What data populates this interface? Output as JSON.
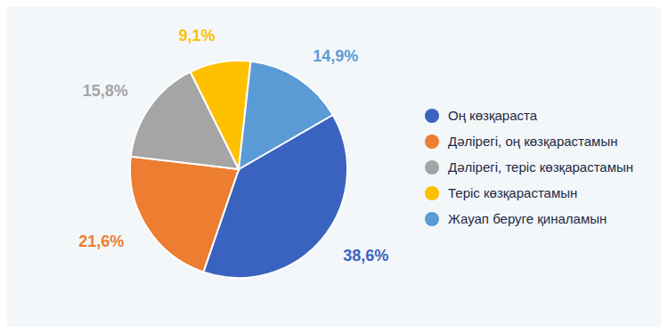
{
  "chart_data": {
    "type": "pie",
    "categories": [
      "Оң көзқараста",
      "Дәлірегі, оң көзқарастамын",
      "Дәлірегі, теріс көзқарастамын",
      "Теріс көзқарастамын",
      "Жауап беруге қиналамын"
    ],
    "values": [
      38.6,
      21.6,
      15.8,
      9.1,
      14.9
    ],
    "value_labels": [
      "38,6%",
      "21,6%",
      "15,8%",
      "9,1%",
      "14,9%"
    ],
    "colors": [
      "#3a63bf",
      "#ed7d31",
      "#a5a5a5",
      "#ffc000",
      "#5b9bd5"
    ],
    "data_labels": true,
    "legend": "right"
  }
}
